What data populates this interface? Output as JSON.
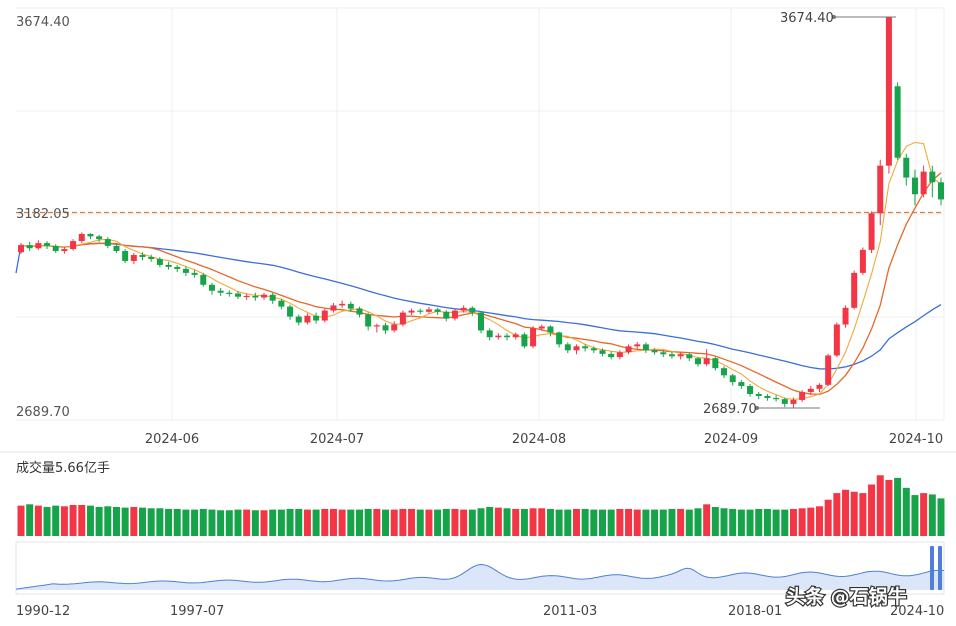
{
  "chart_data": {
    "type": "candlestick",
    "y_axis": {
      "max_label": "3674.40",
      "ref_label": "3182.05",
      "min_label": "2689.70",
      "ylim": [
        2689.7,
        3674.4
      ]
    },
    "reference_line": {
      "value": 3182.05,
      "color": "#e07b39",
      "style": "dashed"
    },
    "x_ticks": [
      "2024-06",
      "2024-07",
      "2024-08",
      "2024-09",
      "2024-10"
    ],
    "annotations": {
      "high": "3674.40",
      "low": "2689.70"
    },
    "colors": {
      "up": "#f23645",
      "down": "#16a34a",
      "ma_short": "#f2a93b",
      "ma_mid": "#e5682a",
      "ma_long": "#3b6fd9",
      "navigator": "#4f7fd6"
    },
    "candles": [
      [
        3082,
        3100,
        3105,
        3078
      ],
      [
        3100,
        3092,
        3108,
        3085
      ],
      [
        3092,
        3105,
        3112,
        3088
      ],
      [
        3105,
        3098,
        3110,
        3090
      ],
      [
        3098,
        3085,
        3102,
        3080
      ],
      [
        3085,
        3090,
        3096,
        3078
      ],
      [
        3090,
        3110,
        3115,
        3086
      ],
      [
        3110,
        3128,
        3132,
        3105
      ],
      [
        3128,
        3122,
        3130,
        3115
      ],
      [
        3122,
        3115,
        3126,
        3108
      ],
      [
        3115,
        3098,
        3120,
        3092
      ],
      [
        3098,
        3085,
        3102,
        3080
      ],
      [
        3085,
        3060,
        3090,
        3055
      ],
      [
        3060,
        3075,
        3080,
        3052
      ],
      [
        3075,
        3070,
        3082,
        3062
      ],
      [
        3070,
        3065,
        3076,
        3058
      ],
      [
        3065,
        3050,
        3070,
        3044
      ],
      [
        3050,
        3045,
        3058,
        3038
      ],
      [
        3045,
        3040,
        3050,
        3032
      ],
      [
        3040,
        3030,
        3046,
        3022
      ],
      [
        3030,
        3025,
        3038,
        3018
      ],
      [
        3025,
        3000,
        3030,
        2995
      ],
      [
        3000,
        2985,
        3005,
        2975
      ],
      [
        2985,
        2980,
        2992,
        2972
      ],
      [
        2980,
        2978,
        2986,
        2970
      ],
      [
        2978,
        2970,
        2984,
        2964
      ],
      [
        2970,
        2972,
        2978,
        2962
      ],
      [
        2972,
        2968,
        2980,
        2960
      ],
      [
        2968,
        2975,
        2980,
        2962
      ],
      [
        2975,
        2960,
        2980,
        2952
      ],
      [
        2960,
        2945,
        2965,
        2938
      ],
      [
        2945,
        2920,
        2950,
        2912
      ],
      [
        2920,
        2905,
        2925,
        2898
      ],
      [
        2905,
        2922,
        2928,
        2900
      ],
      [
        2922,
        2910,
        2930,
        2902
      ],
      [
        2910,
        2935,
        2940,
        2905
      ],
      [
        2935,
        2948,
        2954,
        2930
      ],
      [
        2948,
        2952,
        2960,
        2942
      ],
      [
        2952,
        2940,
        2958,
        2932
      ],
      [
        2940,
        2925,
        2945,
        2918
      ],
      [
        2925,
        2895,
        2930,
        2885
      ],
      [
        2895,
        2898,
        2902,
        2880
      ],
      [
        2898,
        2885,
        2904,
        2876
      ],
      [
        2885,
        2900,
        2908,
        2880
      ],
      [
        2900,
        2930,
        2935,
        2895
      ],
      [
        2930,
        2935,
        2940,
        2924
      ],
      [
        2935,
        2932,
        2940,
        2926
      ],
      [
        2932,
        2938,
        2944,
        2928
      ],
      [
        2938,
        2932,
        2942,
        2924
      ],
      [
        2932,
        2915,
        2936,
        2908
      ],
      [
        2915,
        2935,
        2940,
        2910
      ],
      [
        2935,
        2942,
        2948,
        2930
      ],
      [
        2942,
        2930,
        2946,
        2922
      ],
      [
        2930,
        2885,
        2932,
        2878
      ],
      [
        2885,
        2868,
        2890,
        2860
      ],
      [
        2868,
        2872,
        2878,
        2862
      ],
      [
        2872,
        2868,
        2878,
        2860
      ],
      [
        2868,
        2875,
        2880,
        2862
      ],
      [
        2875,
        2845,
        2880,
        2840
      ],
      [
        2845,
        2890,
        2896,
        2840
      ],
      [
        2890,
        2895,
        2900,
        2884
      ],
      [
        2895,
        2880,
        2898,
        2870
      ],
      [
        2880,
        2850,
        2882,
        2842
      ],
      [
        2850,
        2835,
        2855,
        2828
      ],
      [
        2835,
        2845,
        2850,
        2825
      ],
      [
        2845,
        2840,
        2850,
        2832
      ],
      [
        2840,
        2835,
        2845,
        2828
      ],
      [
        2835,
        2826,
        2840,
        2820
      ],
      [
        2826,
        2818,
        2832,
        2812
      ],
      [
        2818,
        2830,
        2835,
        2812
      ],
      [
        2830,
        2845,
        2850,
        2825
      ],
      [
        2845,
        2850,
        2856,
        2838
      ],
      [
        2850,
        2835,
        2855,
        2828
      ],
      [
        2835,
        2830,
        2840,
        2824
      ],
      [
        2830,
        2825,
        2836,
        2818
      ],
      [
        2825,
        2820,
        2832,
        2814
      ],
      [
        2820,
        2825,
        2830,
        2812
      ],
      [
        2825,
        2815,
        2828,
        2808
      ],
      [
        2815,
        2800,
        2818,
        2794
      ],
      [
        2800,
        2815,
        2838,
        2795
      ],
      [
        2815,
        2790,
        2818,
        2784
      ],
      [
        2790,
        2772,
        2795,
        2765
      ],
      [
        2772,
        2755,
        2776,
        2746
      ],
      [
        2755,
        2745,
        2760,
        2738
      ],
      [
        2745,
        2725,
        2750,
        2718
      ],
      [
        2725,
        2720,
        2730,
        2712
      ],
      [
        2720,
        2715,
        2725,
        2708
      ],
      [
        2715,
        2712,
        2722,
        2706
      ],
      [
        2712,
        2700,
        2716,
        2692
      ],
      [
        2700,
        2710,
        2716,
        2689.7
      ],
      [
        2710,
        2730,
        2735,
        2705
      ],
      [
        2730,
        2738,
        2745,
        2722
      ],
      [
        2738,
        2748,
        2752,
        2730
      ],
      [
        2748,
        2822,
        2826,
        2745
      ],
      [
        2822,
        2900,
        2905,
        2818
      ],
      [
        2900,
        2942,
        2948,
        2892
      ],
      [
        2942,
        3030,
        3036,
        2938
      ],
      [
        3030,
        3088,
        3094,
        3025
      ],
      [
        3088,
        3180,
        3185,
        3080
      ],
      [
        3180,
        3300,
        3315,
        3150
      ],
      [
        3300,
        3674.4,
        3674.4,
        3280
      ],
      [
        3500,
        3320,
        3510,
        3315
      ],
      [
        3320,
        3270,
        3330,
        3250
      ],
      [
        3270,
        3228,
        3290,
        3200
      ],
      [
        3228,
        3285,
        3300,
        3220
      ],
      [
        3285,
        3258,
        3300,
        3220
      ],
      [
        3258,
        3215,
        3270,
        3200
      ]
    ]
  },
  "volume": {
    "label": "成交量5.66亿手",
    "bars": [
      0.46,
      0.48,
      0.46,
      0.44,
      0.46,
      0.45,
      0.47,
      0.47,
      0.46,
      0.44,
      0.45,
      0.44,
      0.43,
      0.44,
      0.43,
      0.42,
      0.42,
      0.41,
      0.41,
      0.4,
      0.4,
      0.41,
      0.4,
      0.39,
      0.39,
      0.4,
      0.4,
      0.39,
      0.39,
      0.4,
      0.4,
      0.41,
      0.41,
      0.4,
      0.4,
      0.41,
      0.41,
      0.4,
      0.4,
      0.4,
      0.41,
      0.41,
      0.4,
      0.4,
      0.41,
      0.41,
      0.4,
      0.4,
      0.4,
      0.41,
      0.41,
      0.4,
      0.4,
      0.42,
      0.44,
      0.43,
      0.42,
      0.41,
      0.41,
      0.42,
      0.42,
      0.41,
      0.4,
      0.4,
      0.41,
      0.41,
      0.4,
      0.4,
      0.4,
      0.41,
      0.41,
      0.4,
      0.4,
      0.4,
      0.4,
      0.41,
      0.41,
      0.4,
      0.42,
      0.48,
      0.44,
      0.42,
      0.41,
      0.4,
      0.4,
      0.41,
      0.41,
      0.4,
      0.4,
      0.41,
      0.42,
      0.43,
      0.45,
      0.55,
      0.65,
      0.7,
      0.67,
      0.65,
      0.78,
      0.92,
      0.85,
      0.88,
      0.73,
      0.62,
      0.65,
      0.63,
      0.57
    ]
  },
  "navigator": {
    "x_labels": [
      "1990-12",
      "1997-07",
      "2011-03",
      "2018-01",
      "2024-10"
    ]
  },
  "watermark": "头条 @石锅牛"
}
